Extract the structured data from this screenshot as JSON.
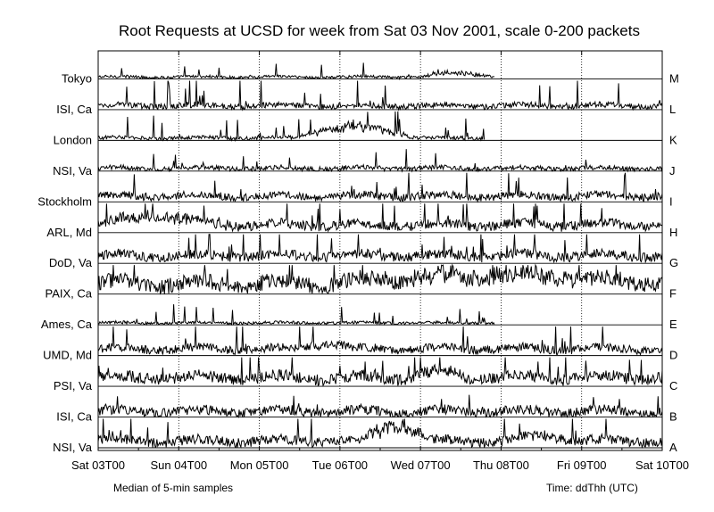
{
  "chart_data": {
    "type": "line",
    "title": "Root Requests at UCSD for week from Sat 03 Nov 2001, scale 0-200 packets",
    "note_left": "Median of 5-min samples",
    "note_right": "Time: ddThh (UTC)",
    "x_tick_labels": [
      "Sat 03T00",
      "Sun 04T00",
      "Mon 05T00",
      "Tue 06T00",
      "Wed 07T00",
      "Thu 08T00",
      "Fri 09T00",
      "Sat 10T00"
    ],
    "xlim": [
      0,
      168
    ],
    "ylim_per_row": [
      0,
      200
    ],
    "grid": true,
    "series": [
      {
        "name": "Tokyo",
        "letter": "M",
        "end_hour": 118,
        "baseline": 4,
        "noise": 3,
        "spike_prob": 0.02,
        "spike_max": 30,
        "bumps": [
          {
            "start": 96,
            "end": 118,
            "amp": 8
          }
        ]
      },
      {
        "name": "ISI, Ca",
        "letter": "L",
        "end_hour": 168,
        "baseline": 8,
        "noise": 6,
        "spike_prob": 0.05,
        "spike_max": 60,
        "bumps": []
      },
      {
        "name": "London",
        "letter": "K",
        "end_hour": 115,
        "baseline": 5,
        "noise": 4,
        "spike_prob": 0.05,
        "spike_max": 50,
        "bumps": [
          {
            "start": 58,
            "end": 95,
            "amp": 22
          }
        ]
      },
      {
        "name": "NSI, Va",
        "letter": "J",
        "end_hour": 168,
        "baseline": 6,
        "noise": 5,
        "spike_prob": 0.03,
        "spike_max": 40,
        "bumps": []
      },
      {
        "name": "Stockholm",
        "letter": "I",
        "end_hour": 168,
        "baseline": 12,
        "noise": 8,
        "spike_prob": 0.04,
        "spike_max": 70,
        "bumps": []
      },
      {
        "name": "ARL, Md",
        "letter": "H",
        "end_hour": 168,
        "baseline": 16,
        "noise": 10,
        "spike_prob": 0.04,
        "spike_max": 60,
        "bumps": [
          {
            "start": 0,
            "end": 34,
            "amp": 18
          }
        ]
      },
      {
        "name": "DoD, Va",
        "letter": "G",
        "end_hour": 168,
        "baseline": 16,
        "noise": 10,
        "spike_prob": 0.04,
        "spike_max": 80,
        "bumps": []
      },
      {
        "name": "PAIX, Ca",
        "letter": "F",
        "end_hour": 168,
        "baseline": 22,
        "noise": 16,
        "spike_prob": 0.03,
        "spike_max": 60,
        "bumps": [
          {
            "start": 70,
            "end": 168,
            "amp": 16
          }
        ]
      },
      {
        "name": "Ames, Ca",
        "letter": "E",
        "end_hour": 118,
        "baseline": 4,
        "noise": 3,
        "spike_prob": 0.03,
        "spike_max": 40,
        "bumps": []
      },
      {
        "name": "UMD, Md",
        "letter": "D",
        "end_hour": 168,
        "baseline": 14,
        "noise": 9,
        "spike_prob": 0.04,
        "spike_max": 80,
        "bumps": [
          {
            "start": 60,
            "end": 76,
            "amp": 12
          }
        ]
      },
      {
        "name": "PSI, Va",
        "letter": "C",
        "end_hour": 168,
        "baseline": 18,
        "noise": 12,
        "spike_prob": 0.04,
        "spike_max": 70,
        "bumps": [
          {
            "start": 93,
            "end": 110,
            "amp": 14
          }
        ]
      },
      {
        "name": "ISI, Ca",
        "letter": "B",
        "end_hour": 168,
        "baseline": 12,
        "noise": 10,
        "spike_prob": 0.02,
        "spike_max": 30,
        "bumps": []
      },
      {
        "name": "NSI, Va",
        "letter": "A",
        "end_hour": 168,
        "baseline": 14,
        "noise": 10,
        "spike_prob": 0.04,
        "spike_max": 60,
        "bumps": [
          {
            "start": 78,
            "end": 100,
            "amp": 28
          },
          {
            "start": 122,
            "end": 142,
            "amp": 12
          }
        ]
      }
    ]
  }
}
